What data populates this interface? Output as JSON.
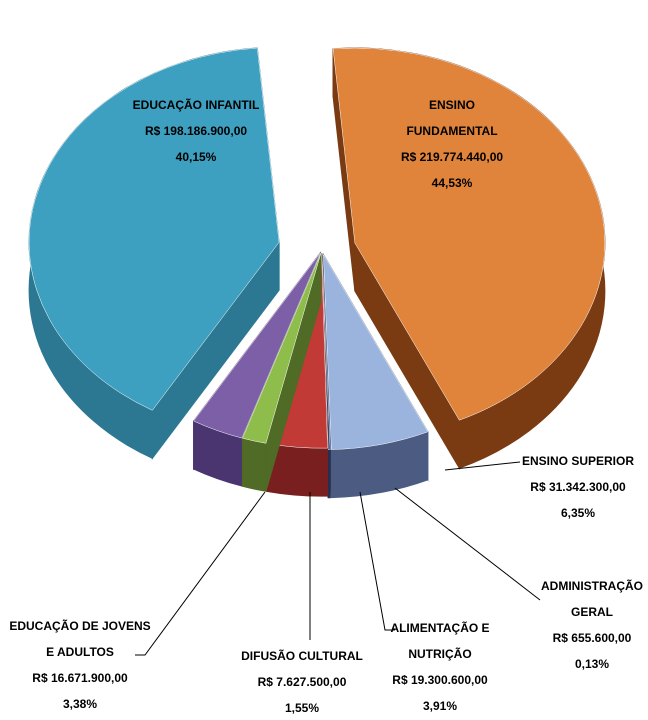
{
  "chart_data": {
    "type": "pie",
    "categories": [
      "ENSINO FUNDAMENTAL",
      "ENSINO SUPERIOR",
      "ADMINISTRAÇÃO GERAL",
      "ALIMENTAÇÃO E NUTRIÇÃO",
      "DIFUSÃO CULTURAL",
      "EDUCAÇÃO DE JOVENS E ADULTOS",
      "EDUCAÇÃO INFANTIL"
    ],
    "values": [
      44.53,
      6.35,
      0.13,
      3.91,
      1.55,
      3.38,
      40.15
    ],
    "value_labels": [
      "44,53%",
      "6,35%",
      "0,13%",
      "3,91%",
      "1,55%",
      "3,38%",
      "40,15%"
    ],
    "amount_labels": [
      "R$ 219.774.440,00",
      "R$ 31.342.300,00",
      "R$ 655.600,00",
      "R$ 19.300.600,00",
      "R$ 7.627.500,00",
      "R$ 16.671.900,00",
      "R$ 198.186.900,00"
    ],
    "colors": [
      "#e0843c",
      "#9ab4de",
      "#34466e",
      "#c23a36",
      "#8fbd4c",
      "#7d5fa8",
      "#3ea0c0"
    ],
    "side_colors": [
      "#7a3b12",
      "#4b5b82",
      "#23304f",
      "#7a1f20",
      "#4f6b25",
      "#4a3570",
      "#2c7893"
    ]
  }
}
